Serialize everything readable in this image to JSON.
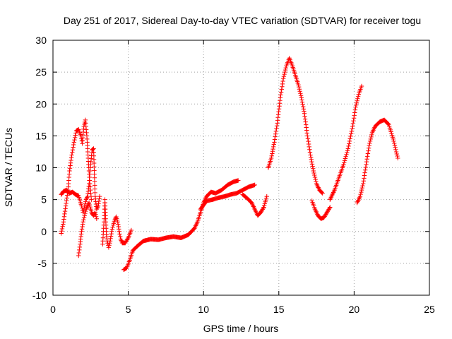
{
  "chart_data": {
    "type": "scatter",
    "title": "Day 251 of 2017, Sidereal Day-to-day VTEC variation (SDTVAR) for receiver togu",
    "xlabel": "GPS time / hours",
    "ylabel": "SDTVAR / TECUs",
    "xlim": [
      0,
      25
    ],
    "ylim": [
      -10,
      30
    ],
    "xticks": [
      "0",
      "5",
      "10",
      "15",
      "20",
      "25"
    ],
    "yticks": [
      "-10",
      "-5",
      "0",
      "5",
      "10",
      "15",
      "20",
      "25",
      "30"
    ],
    "grid": true,
    "marker": "plus",
    "color": "#ff0000",
    "series": [
      {
        "name": "togu",
        "segments": [
          [
            [
              0.55,
              -0.3
            ],
            [
              0.7,
              1.5
            ],
            [
              0.85,
              4
            ],
            [
              1.0,
              6.5
            ],
            [
              1.1,
              9.5
            ],
            [
              1.25,
              12
            ],
            [
              1.4,
              14
            ],
            [
              1.55,
              15.8
            ],
            [
              1.7,
              16
            ],
            [
              1.85,
              15
            ],
            [
              1.95,
              13.8
            ],
            [
              2.05,
              16.5
            ],
            [
              2.15,
              17.5
            ],
            [
              2.25,
              15
            ],
            [
              2.35,
              11
            ],
            [
              2.45,
              7.5
            ],
            [
              2.55,
              5
            ]
          ],
          [
            [
              0.55,
              5.8
            ],
            [
              0.7,
              6.3
            ],
            [
              0.9,
              6.5
            ],
            [
              1.1,
              6.0
            ],
            [
              1.3,
              6.2
            ],
            [
              1.5,
              5.8
            ],
            [
              1.7,
              5.6
            ],
            [
              1.8,
              4.8
            ],
            [
              1.9,
              4.0
            ],
            [
              2.0,
              3.0
            ],
            [
              2.1,
              4.0
            ],
            [
              2.2,
              5.0
            ],
            [
              2.3,
              5.5
            ],
            [
              2.4,
              7.5
            ],
            [
              2.5,
              10.5
            ],
            [
              2.6,
              12.8
            ],
            [
              2.7,
              13.0
            ],
            [
              2.75,
              9.0
            ],
            [
              2.8,
              5.5
            ],
            [
              2.9,
              3.5
            ],
            [
              3.0,
              4.0
            ],
            [
              3.1,
              5.5
            ]
          ],
          [
            [
              1.7,
              -3.8
            ],
            [
              1.8,
              -2.0
            ],
            [
              1.9,
              0.0
            ],
            [
              2.0,
              1.5
            ],
            [
              2.1,
              2.5
            ],
            [
              2.2,
              3.5
            ],
            [
              2.3,
              4.0
            ],
            [
              2.4,
              4.5
            ],
            [
              2.5,
              3.5
            ],
            [
              2.6,
              2.8
            ],
            [
              2.7,
              2.5
            ],
            [
              2.8,
              3.0
            ],
            [
              2.9,
              2.0
            ]
          ],
          [
            [
              3.3,
              -2.0
            ],
            [
              3.4,
              2.0
            ],
            [
              3.45,
              5.0
            ],
            [
              3.5,
              2.0
            ],
            [
              3.55,
              -0.5
            ],
            [
              3.6,
              -1.5
            ],
            [
              3.7,
              -2.5
            ],
            [
              3.8,
              -1.5
            ],
            [
              3.9,
              0.0
            ],
            [
              4.0,
              1.0
            ],
            [
              4.1,
              1.8
            ],
            [
              4.2,
              2.3
            ],
            [
              4.3,
              1.5
            ],
            [
              4.4,
              0.0
            ],
            [
              4.5,
              -1.2
            ],
            [
              4.6,
              -1.8
            ],
            [
              4.8,
              -1.8
            ],
            [
              5.0,
              -1.0
            ],
            [
              5.2,
              0.2
            ]
          ],
          [
            [
              4.7,
              -6.0
            ],
            [
              4.9,
              -5.7
            ],
            [
              5.1,
              -4.5
            ],
            [
              5.3,
              -3.0
            ],
            [
              5.6,
              -2.3
            ],
            [
              6.0,
              -1.5
            ],
            [
              6.5,
              -1.2
            ],
            [
              7.0,
              -1.3
            ],
            [
              7.5,
              -1.0
            ],
            [
              8.0,
              -0.8
            ],
            [
              8.5,
              -1.0
            ],
            [
              9.0,
              -0.5
            ],
            [
              9.2,
              0.0
            ],
            [
              9.4,
              0.5
            ],
            [
              9.6,
              1.5
            ],
            [
              9.8,
              3.0
            ],
            [
              10.0,
              4.5
            ],
            [
              10.2,
              5.5
            ],
            [
              10.5,
              6.2
            ],
            [
              10.8,
              6.0
            ],
            [
              11.2,
              6.5
            ],
            [
              11.6,
              7.3
            ],
            [
              12.0,
              7.8
            ],
            [
              12.3,
              8.0
            ]
          ],
          [
            [
              9.8,
              3.5
            ],
            [
              10.2,
              4.8
            ],
            [
              10.6,
              5.0
            ],
            [
              11.0,
              5.3
            ],
            [
              11.4,
              5.5
            ],
            [
              11.8,
              5.8
            ],
            [
              12.2,
              6.0
            ],
            [
              12.6,
              6.5
            ],
            [
              13.0,
              7.0
            ],
            [
              13.4,
              7.3
            ]
          ],
          [
            [
              12.6,
              5.8
            ],
            [
              12.9,
              5.2
            ],
            [
              13.2,
              4.5
            ],
            [
              13.4,
              3.5
            ],
            [
              13.6,
              2.5
            ],
            [
              13.8,
              3.0
            ],
            [
              14.0,
              3.8
            ],
            [
              14.2,
              5.5
            ]
          ],
          [
            [
              14.3,
              10.0
            ],
            [
              14.5,
              11.5
            ],
            [
              14.7,
              14.0
            ],
            [
              14.9,
              17.0
            ],
            [
              15.1,
              21.0
            ],
            [
              15.3,
              24.0
            ],
            [
              15.5,
              26.0
            ],
            [
              15.7,
              27.2
            ],
            [
              15.9,
              26.0
            ],
            [
              16.1,
              24.5
            ],
            [
              16.3,
              23.0
            ],
            [
              16.5,
              21.0
            ],
            [
              16.7,
              18.5
            ],
            [
              16.9,
              15.0
            ],
            [
              17.1,
              12.0
            ],
            [
              17.3,
              9.5
            ],
            [
              17.5,
              7.5
            ],
            [
              17.7,
              6.5
            ],
            [
              17.9,
              6.0
            ]
          ],
          [
            [
              17.2,
              4.8
            ],
            [
              17.4,
              3.5
            ],
            [
              17.6,
              2.5
            ],
            [
              17.8,
              2.0
            ],
            [
              18.0,
              2.2
            ],
            [
              18.2,
              3.0
            ],
            [
              18.4,
              3.8
            ]
          ],
          [
            [
              18.4,
              5.0
            ],
            [
              18.7,
              6.5
            ],
            [
              19.0,
              8.5
            ],
            [
              19.3,
              10.5
            ],
            [
              19.6,
              13.0
            ],
            [
              19.9,
              16.5
            ],
            [
              20.1,
              19.5
            ],
            [
              20.3,
              21.5
            ],
            [
              20.5,
              22.8
            ]
          ],
          [
            [
              20.2,
              4.5
            ],
            [
              20.4,
              5.5
            ],
            [
              20.6,
              7.5
            ],
            [
              20.8,
              10.5
            ],
            [
              21.0,
              13.5
            ],
            [
              21.2,
              15.5
            ],
            [
              21.4,
              16.5
            ],
            [
              21.7,
              17.2
            ],
            [
              22.0,
              17.5
            ],
            [
              22.3,
              16.8
            ],
            [
              22.6,
              14.5
            ],
            [
              22.8,
              12.5
            ],
            [
              22.9,
              11.5
            ]
          ]
        ]
      }
    ]
  }
}
